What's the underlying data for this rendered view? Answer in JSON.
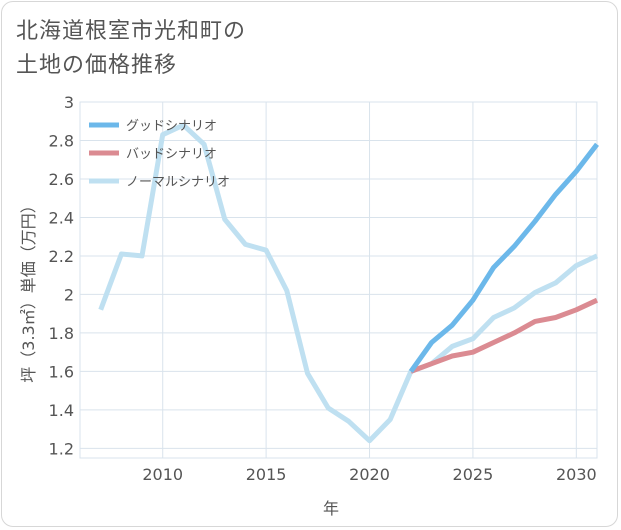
{
  "title_lines": [
    "北海道根室市光和町の",
    "土地の価格推移"
  ],
  "chart_data": {
    "type": "line",
    "xlabel": "年",
    "ylabel": "坪（3.3㎡）単価（万円）",
    "xlim": [
      2006,
      2031
    ],
    "ylim": [
      1.15,
      3.0
    ],
    "x_ticks": [
      2010,
      2015,
      2020,
      2025,
      2030
    ],
    "y_ticks": [
      1.2,
      1.4,
      1.6,
      1.8,
      2,
      2.2,
      2.4,
      2.6,
      2.8,
      3
    ],
    "grid": true,
    "legend_position": "top-left",
    "series": [
      {
        "name": "グッドシナリオ",
        "color": "#6cb8ea",
        "x": [
          2022,
          2023,
          2024,
          2025,
          2026,
          2027,
          2028,
          2029,
          2030,
          2031
        ],
        "y": [
          1.6,
          1.75,
          1.84,
          1.97,
          2.14,
          2.25,
          2.38,
          2.52,
          2.64,
          2.78
        ]
      },
      {
        "name": "バッドシナリオ",
        "color": "#db8b92",
        "x": [
          2022,
          2023,
          2024,
          2025,
          2026,
          2027,
          2028,
          2029,
          2030,
          2031
        ],
        "y": [
          1.6,
          1.64,
          1.68,
          1.7,
          1.75,
          1.8,
          1.86,
          1.88,
          1.92,
          1.97
        ]
      },
      {
        "name": "ノーマルシナリオ",
        "color": "#bfe0f1",
        "x": [
          2007,
          2008,
          2009,
          2010,
          2011,
          2012,
          2013,
          2014,
          2015,
          2016,
          2017,
          2018,
          2019,
          2020,
          2021,
          2022,
          2023,
          2024,
          2025,
          2026,
          2027,
          2028,
          2029,
          2030,
          2031
        ],
        "y": [
          1.92,
          2.21,
          2.2,
          2.83,
          2.88,
          2.78,
          2.39,
          2.26,
          2.23,
          2.02,
          1.59,
          1.41,
          1.34,
          1.24,
          1.35,
          1.6,
          1.64,
          1.73,
          1.77,
          1.88,
          1.93,
          2.01,
          2.06,
          2.15,
          2.2
        ]
      }
    ]
  }
}
